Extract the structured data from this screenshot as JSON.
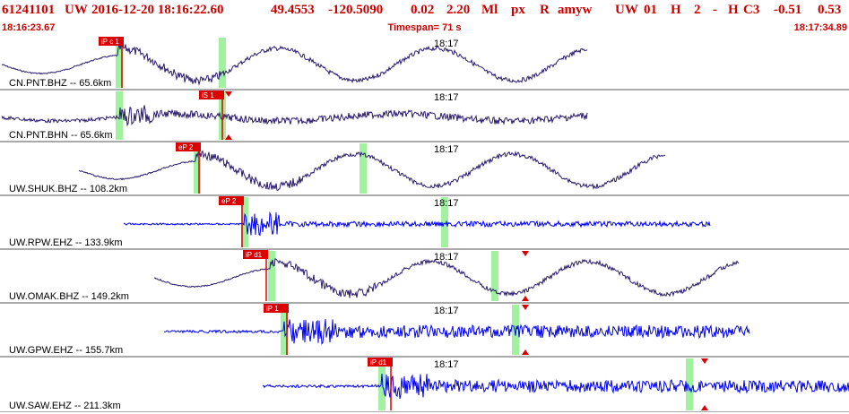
{
  "header": {
    "evid": "61241101",
    "net": "UW",
    "datetime": "2016-12-20 18:16:22.60",
    "lat": "49.4553",
    "lon": "-120.5090",
    "depth": "0.02",
    "mag": "2.20",
    "magtype": "Ml",
    "etype": "px",
    "review": "R",
    "author": "amyw",
    "auth_net": "UW",
    "version": "01",
    "gtype": "H",
    "count": "2",
    "dash": "-",
    "flag": "H",
    "class": "C3",
    "val1": "-0.51",
    "val2": "0.53"
  },
  "timebar": {
    "start": "18:16:23.67",
    "span": "Timespan=  71 s",
    "end": "18:17:34.89"
  },
  "colors": {
    "header": "#cc0000",
    "trace_dark": "#2a1a6a",
    "trace_blue": "#0000ee",
    "pick_box": "#dd0000",
    "pick_band": "#90ee90",
    "separator": "#555555"
  },
  "traces": [
    {
      "label": "CN.PNT.BHZ -- 65.6km",
      "minute": "18:17",
      "pick": "iP c 1",
      "pick2": "",
      "channel": "BHZ",
      "color": "dark"
    },
    {
      "label": "CN.PNT.BHN -- 65.6km",
      "minute": "18:17",
      "pick": "iS 1",
      "pick2": "",
      "channel": "BHN",
      "color": "dark"
    },
    {
      "label": "UW.SHUK.BHZ -- 108.2km",
      "minute": "18:17",
      "pick": "eP 2",
      "pick2": "",
      "channel": "BHZ",
      "color": "dark"
    },
    {
      "label": "UW.RPW.EHZ -- 133.9km",
      "minute": "18:17",
      "pick": "eP 2",
      "pick2": "",
      "channel": "EHZ",
      "color": "blue"
    },
    {
      "label": "UW.OMAK.BHZ -- 149.2km",
      "minute": "18:17",
      "pick": "iP d1",
      "pick2": "",
      "channel": "BHZ",
      "color": "dark"
    },
    {
      "label": "UW.GPW.EHZ -- 155.7km",
      "minute": "18:17",
      "pick": "iP 1",
      "pick2": "",
      "channel": "EHZ",
      "color": "blue"
    },
    {
      "label": "UW.SAW.EHZ -- 211.3km",
      "minute": "18:17",
      "pick": "iP d1",
      "pick2": "",
      "channel": "EHZ",
      "color": "blue"
    }
  ]
}
